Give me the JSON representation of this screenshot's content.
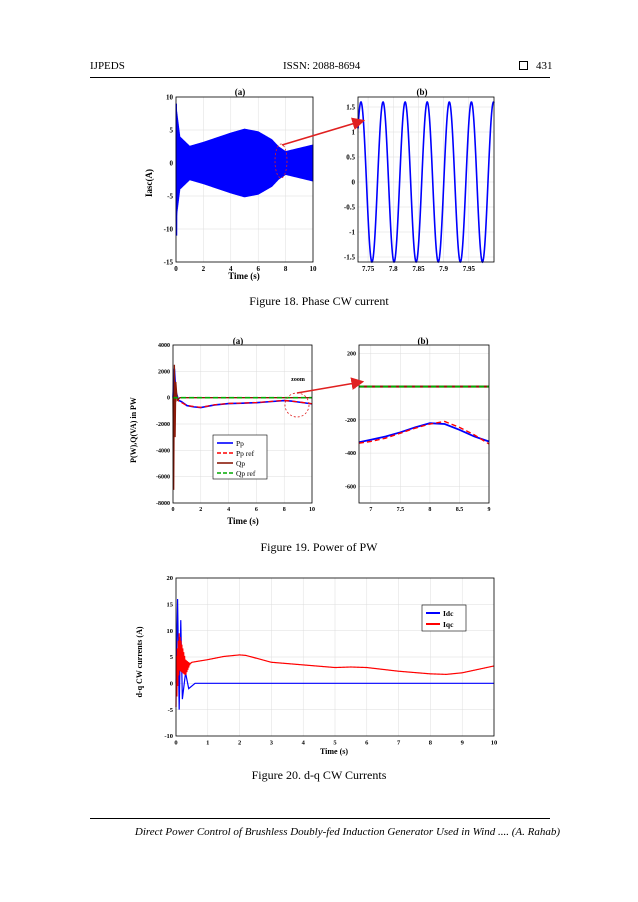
{
  "header": {
    "journal": "IJPEDS",
    "issn": "ISSN: 2088-8694",
    "page_number": "431"
  },
  "footer": {
    "running_title": "Direct Power Control of Brushless Doubly-fed Induction Generator Used in Wind .... (A. Rahab)"
  },
  "figures": {
    "fig18": {
      "caption": "Figure 18. Phase CW current",
      "panel_a_label": "(a)",
      "panel_b_label": "(b)",
      "ylabel": "Iasc(A)",
      "xlabel": "Time (s)"
    },
    "fig19": {
      "caption": "Figure 19. Power of PW",
      "panel_a_label": "(a)",
      "panel_b_label": "(b)",
      "ylabel": "P(W),Q(VA) in PW",
      "xlabel": "Time (s)",
      "annotation": "zoom"
    },
    "fig20": {
      "caption": "Figure 20. d-q CW Currents",
      "ylabel": "d-q CW currents (A)",
      "xlabel": "Time (s)"
    }
  },
  "chart_data": [
    {
      "id": "fig18a",
      "type": "line",
      "title": "(a)",
      "xlabel": "Time (s)",
      "ylabel": "Iasc(A)",
      "xlim": [
        0,
        10
      ],
      "ylim": [
        -15,
        10
      ],
      "xticks": [
        0,
        2,
        4,
        6,
        8,
        10
      ],
      "yticks": [
        -15,
        -10,
        -5,
        0,
        5,
        10
      ],
      "series": [
        {
          "color": "#0000ff",
          "envelope_t": [
            0,
            0.3,
            1,
            2,
            3,
            4,
            5,
            6,
            7,
            7.5,
            8,
            9,
            10
          ],
          "envelope_amp": [
            9,
            4,
            2.6,
            3.2,
            3.9,
            4.6,
            5.2,
            4.8,
            3.6,
            2.5,
            1.8,
            2.3,
            2.8
          ],
          "startup_peaks": [
            9,
            -11
          ]
        }
      ]
    },
    {
      "id": "fig18b",
      "type": "line",
      "title": "(b)",
      "xlim": [
        7.73,
        8.0
      ],
      "ylim": [
        -1.6,
        1.7
      ],
      "xticks": [
        7.75,
        7.8,
        7.85,
        7.9,
        7.95
      ],
      "yticks": [
        -1.5,
        -1,
        -0.5,
        0,
        0.5,
        1,
        1.5
      ],
      "series": [
        {
          "color": "#0000ff",
          "amplitude": 1.6,
          "frequency_hz": 22.8,
          "phase_rad": -0.8
        }
      ]
    },
    {
      "id": "fig19a",
      "type": "line",
      "title": "(a)",
      "xlabel": "Time (s)",
      "ylabel": "P(W),Q(VA) in PW",
      "xlim": [
        0,
        10
      ],
      "ylim": [
        -8000,
        4000
      ],
      "xticks": [
        0,
        2,
        4,
        6,
        8,
        10
      ],
      "yticks": [
        -8000,
        -6000,
        -4000,
        -2000,
        0,
        2000,
        4000
      ],
      "series": [
        {
          "name": "Pp",
          "color": "#0000ff",
          "dash": "",
          "x": [
            0,
            0.1,
            0.2,
            0.4,
            0.6,
            1,
            1.5,
            2,
            3,
            4,
            5,
            6,
            7,
            8,
            8.5,
            9,
            10
          ],
          "y": [
            0,
            2200,
            500,
            -200,
            -300,
            -600,
            -700,
            -750,
            -550,
            -450,
            -420,
            -380,
            -300,
            -220,
            -260,
            -330,
            -470
          ]
        },
        {
          "name": "Pp ref",
          "color": "#ff0000",
          "dash": "5,3",
          "x": [
            0,
            0.2,
            0.4,
            1,
            2,
            3,
            4,
            5,
            6,
            7,
            8,
            9,
            10
          ],
          "y": [
            0,
            300,
            -250,
            -600,
            -740,
            -540,
            -440,
            -410,
            -370,
            -290,
            -210,
            -320,
            -460
          ]
        },
        {
          "name": "Qp",
          "color": "#8b1a0a",
          "dash": "",
          "x": [
            0,
            0.05,
            0.1,
            0.15,
            0.2,
            0.3,
            0.5,
            10
          ],
          "y": [
            0,
            -7000,
            2500,
            -3000,
            1200,
            -200,
            0,
            0
          ]
        },
        {
          "name": "Qp ref",
          "color": "#00aa00",
          "dash": "5,3",
          "x": [
            0,
            10
          ],
          "y": [
            0,
            0
          ]
        }
      ]
    },
    {
      "id": "fig19b",
      "type": "line",
      "title": "(b)",
      "xlim": [
        6.8,
        9
      ],
      "ylim": [
        -700,
        250
      ],
      "xticks": [
        7,
        7.5,
        8,
        8.5,
        9
      ],
      "yticks": [
        -600,
        -400,
        -200,
        0,
        200
      ],
      "series": [
        {
          "name": "Pp",
          "color": "#0000ff",
          "dash": "",
          "x": [
            6.8,
            7,
            7.25,
            7.5,
            7.75,
            8,
            8.25,
            8.5,
            8.75,
            9
          ],
          "y": [
            -335,
            -320,
            -300,
            -275,
            -245,
            -220,
            -225,
            -260,
            -300,
            -330
          ]
        },
        {
          "name": "Pp ref",
          "color": "#ff0000",
          "dash": "5,3",
          "x": [
            6.8,
            7,
            7.25,
            7.5,
            7.75,
            8,
            8.25,
            8.5,
            8.75,
            9
          ],
          "y": [
            -340,
            -330,
            -310,
            -280,
            -250,
            -225,
            -210,
            -245,
            -290,
            -345
          ]
        },
        {
          "name": "Qp",
          "color": "#8b1a0a",
          "dash": "",
          "x": [
            6.8,
            9
          ],
          "y": [
            0,
            0
          ]
        },
        {
          "name": "Qp ref",
          "color": "#00aa00",
          "dash": "5,3",
          "x": [
            6.8,
            9
          ],
          "y": [
            0,
            0
          ]
        }
      ]
    },
    {
      "id": "fig20",
      "type": "line",
      "xlabel": "Time (s)",
      "ylabel": "d-q CW currents (A)",
      "xlim": [
        0,
        10
      ],
      "ylim": [
        -10,
        20
      ],
      "xticks": [
        0,
        1,
        2,
        3,
        4,
        5,
        6,
        7,
        8,
        9,
        10
      ],
      "yticks": [
        -10,
        -5,
        0,
        5,
        10,
        15,
        20
      ],
      "series": [
        {
          "name": "Idc",
          "color": "#0000ff",
          "x": [
            0,
            0.05,
            0.1,
            0.15,
            0.2,
            0.3,
            0.4,
            0.6,
            10
          ],
          "y": [
            0,
            16,
            -5,
            12,
            -3,
            2,
            -1,
            0,
            0
          ]
        },
        {
          "name": "Iqc",
          "color": "#ff0000",
          "x": [
            0,
            0.1,
            0.3,
            0.5,
            1,
            1.5,
            2,
            2.2,
            3,
            4,
            5,
            5.5,
            6,
            7,
            8,
            8.5,
            9,
            10
          ],
          "y": [
            0,
            6,
            3,
            4,
            4.5,
            5.1,
            5.4,
            5.3,
            4.0,
            3.5,
            3.0,
            3.1,
            3.0,
            2.3,
            1.8,
            1.7,
            2.0,
            3.3
          ]
        }
      ]
    }
  ]
}
